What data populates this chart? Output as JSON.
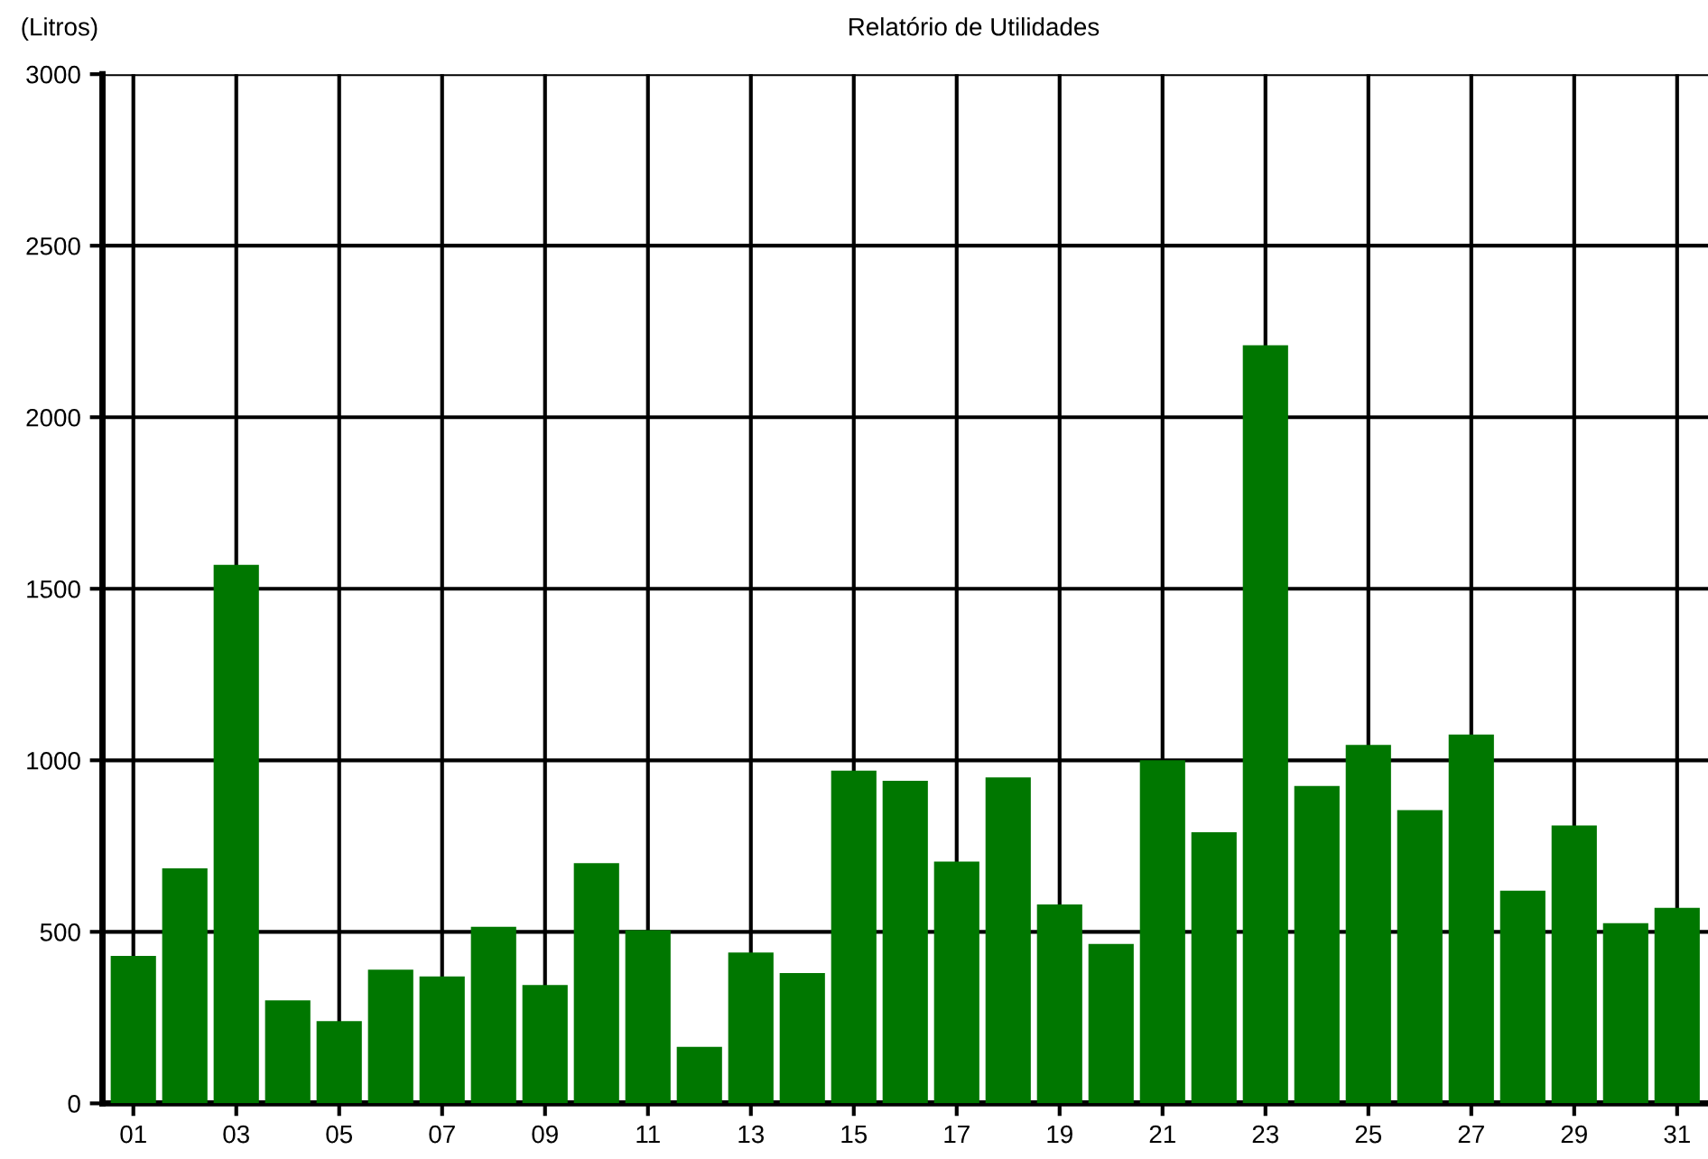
{
  "chart_data": {
    "type": "bar",
    "title": "Relatório de Utilidades",
    "ylabel": "(Litros)",
    "categories": [
      "01",
      null,
      "03",
      null,
      "05",
      null,
      "07",
      null,
      "09",
      null,
      "11",
      null,
      "13",
      null,
      "15",
      null,
      "17",
      null,
      "19",
      null,
      "21",
      null,
      "23",
      null,
      "25",
      null,
      "27",
      null,
      "29",
      null,
      "31"
    ],
    "series": [
      {
        "color": "#007700",
        "values": [
          430,
          685,
          1570,
          300,
          240,
          390,
          370,
          515,
          345,
          700,
          505,
          165,
          440,
          380,
          970,
          940,
          705,
          950,
          580,
          465,
          1000,
          790,
          2210,
          925,
          1045,
          855,
          1075,
          620,
          810,
          525,
          570
        ]
      }
    ],
    "ylim": [
      0,
      3000
    ],
    "yticks": [
      0,
      500,
      1000,
      1500,
      2000,
      2500,
      3000
    ],
    "grid": true,
    "legend": false
  }
}
